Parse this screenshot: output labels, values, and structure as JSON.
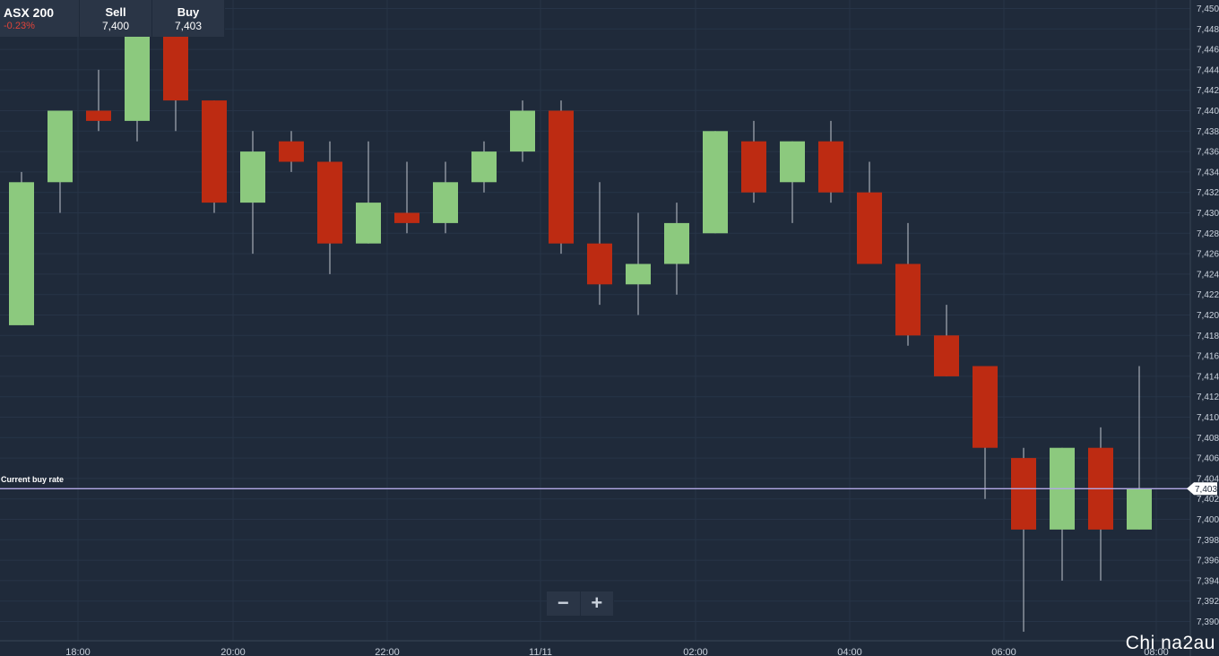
{
  "header": {
    "instrument": "ASX 200",
    "change": "-0.23%",
    "sell_label": "Sell",
    "sell_value": "7,400",
    "buy_label": "Buy",
    "buy_value": "7,403"
  },
  "current_rate": {
    "label": "Current buy rate",
    "value_text": "7,403",
    "value": 7403
  },
  "zoom": {
    "minus": "−",
    "plus": "+"
  },
  "watermark": "Chi na2au",
  "colors": {
    "background": "#1f2a3a",
    "up": "#8cc97e",
    "down": "#bd2b12",
    "wick": "#c0c6cf",
    "current_line": "#b3a9e6",
    "grid": "#273447",
    "axis_text": "#c9d1dc"
  },
  "chart_data": {
    "type": "candlestick",
    "ylim": [
      7388.5,
      7450.5
    ],
    "y_ticks": [
      7390,
      7392,
      7394,
      7396,
      7398,
      7400,
      7402,
      7404,
      7406,
      7408,
      7410,
      7412,
      7414,
      7416,
      7418,
      7420,
      7422,
      7424,
      7426,
      7428,
      7430,
      7432,
      7434,
      7436,
      7438,
      7440,
      7442,
      7444,
      7446,
      7448,
      7450
    ],
    "y_tick_labels": [
      "7,390",
      "7,392",
      "7,394",
      "7,396",
      "7,398",
      "7,400",
      "7,402",
      "7,404",
      "7,406",
      "7,408",
      "7,410",
      "7,412",
      "7,414",
      "7,416",
      "7,418",
      "7,420",
      "7,422",
      "7,424",
      "7,426",
      "7,428",
      "7,430",
      "7,432",
      "7,434",
      "7,436",
      "7,438",
      "7,440",
      "7,442",
      "7,444",
      "7,446",
      "7,448",
      "7,450"
    ],
    "x_tick_labels": [
      "18:00",
      "20:00",
      "22:00",
      "11/11",
      "02:00",
      "04:00",
      "06:00",
      "08:00"
    ],
    "candles": [
      {
        "open": 7419,
        "close": 7433,
        "high": 7434,
        "low": 7419
      },
      {
        "open": 7433,
        "close": 7440,
        "high": 7440,
        "low": 7430
      },
      {
        "open": 7440,
        "close": 7439,
        "high": 7444,
        "low": 7438
      },
      {
        "open": 7439,
        "close": 7448,
        "high": 7450,
        "low": 7437
      },
      {
        "open": 7448,
        "close": 7441,
        "high": 7450,
        "low": 7438
      },
      {
        "open": 7441,
        "close": 7431,
        "high": 7441,
        "low": 7430
      },
      {
        "open": 7431,
        "close": 7436,
        "high": 7438,
        "low": 7426
      },
      {
        "open": 7437,
        "close": 7435,
        "high": 7438,
        "low": 7434
      },
      {
        "open": 7435,
        "close": 7427,
        "high": 7437,
        "low": 7424
      },
      {
        "open": 7427,
        "close": 7431,
        "high": 7437,
        "low": 7427
      },
      {
        "open": 7430,
        "close": 7429,
        "high": 7435,
        "low": 7428
      },
      {
        "open": 7429,
        "close": 7433,
        "high": 7435,
        "low": 7428
      },
      {
        "open": 7433,
        "close": 7436,
        "high": 7437,
        "low": 7432
      },
      {
        "open": 7436,
        "close": 7440,
        "high": 7441,
        "low": 7435
      },
      {
        "open": 7440,
        "close": 7427,
        "high": 7441,
        "low": 7426
      },
      {
        "open": 7427,
        "close": 7423,
        "high": 7433,
        "low": 7421
      },
      {
        "open": 7423,
        "close": 7425,
        "high": 7430,
        "low": 7420
      },
      {
        "open": 7425,
        "close": 7429,
        "high": 7431,
        "low": 7422
      },
      {
        "open": 7428,
        "close": 7438,
        "high": 7438,
        "low": 7428
      },
      {
        "open": 7437,
        "close": 7432,
        "high": 7439,
        "low": 7431
      },
      {
        "open": 7433,
        "close": 7437,
        "high": 7437,
        "low": 7429
      },
      {
        "open": 7437,
        "close": 7432,
        "high": 7439,
        "low": 7431
      },
      {
        "open": 7432,
        "close": 7425,
        "high": 7435,
        "low": 7425
      },
      {
        "open": 7425,
        "close": 7418,
        "high": 7429,
        "low": 7417
      },
      {
        "open": 7418,
        "close": 7414,
        "high": 7421,
        "low": 7414
      },
      {
        "open": 7415,
        "close": 7407,
        "high": 7415,
        "low": 7402
      },
      {
        "open": 7406,
        "close": 7399,
        "high": 7407,
        "low": 7389
      },
      {
        "open": 7399,
        "close": 7407,
        "high": 7407,
        "low": 7394
      },
      {
        "open": 7407,
        "close": 7399,
        "high": 7409,
        "low": 7394
      },
      {
        "open": 7399,
        "close": 7403,
        "high": 7415,
        "low": 7399
      }
    ]
  }
}
